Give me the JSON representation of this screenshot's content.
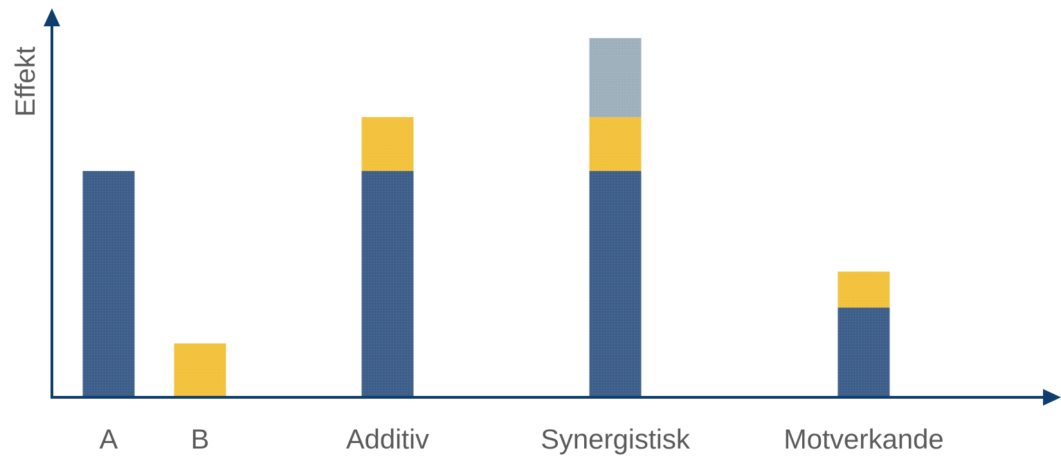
{
  "chart_data": {
    "type": "bar",
    "stacked": true,
    "title": "",
    "xlabel": "",
    "ylabel": "Effekt",
    "grid": false,
    "legend": "none",
    "ylim": [
      0,
      100
    ],
    "categories": [
      "A",
      "B",
      "Additiv",
      "Synergistisk",
      "Motverkande"
    ],
    "series": [
      {
        "color": "#3e5f8a",
        "values": [
          63,
          0,
          63,
          63,
          25
        ]
      },
      {
        "color": "#f2c23c",
        "values": [
          0,
          15,
          15,
          15,
          10
        ]
      },
      {
        "color": "#9fb0bd",
        "values": [
          0,
          0,
          0,
          22,
          0
        ]
      }
    ]
  }
}
